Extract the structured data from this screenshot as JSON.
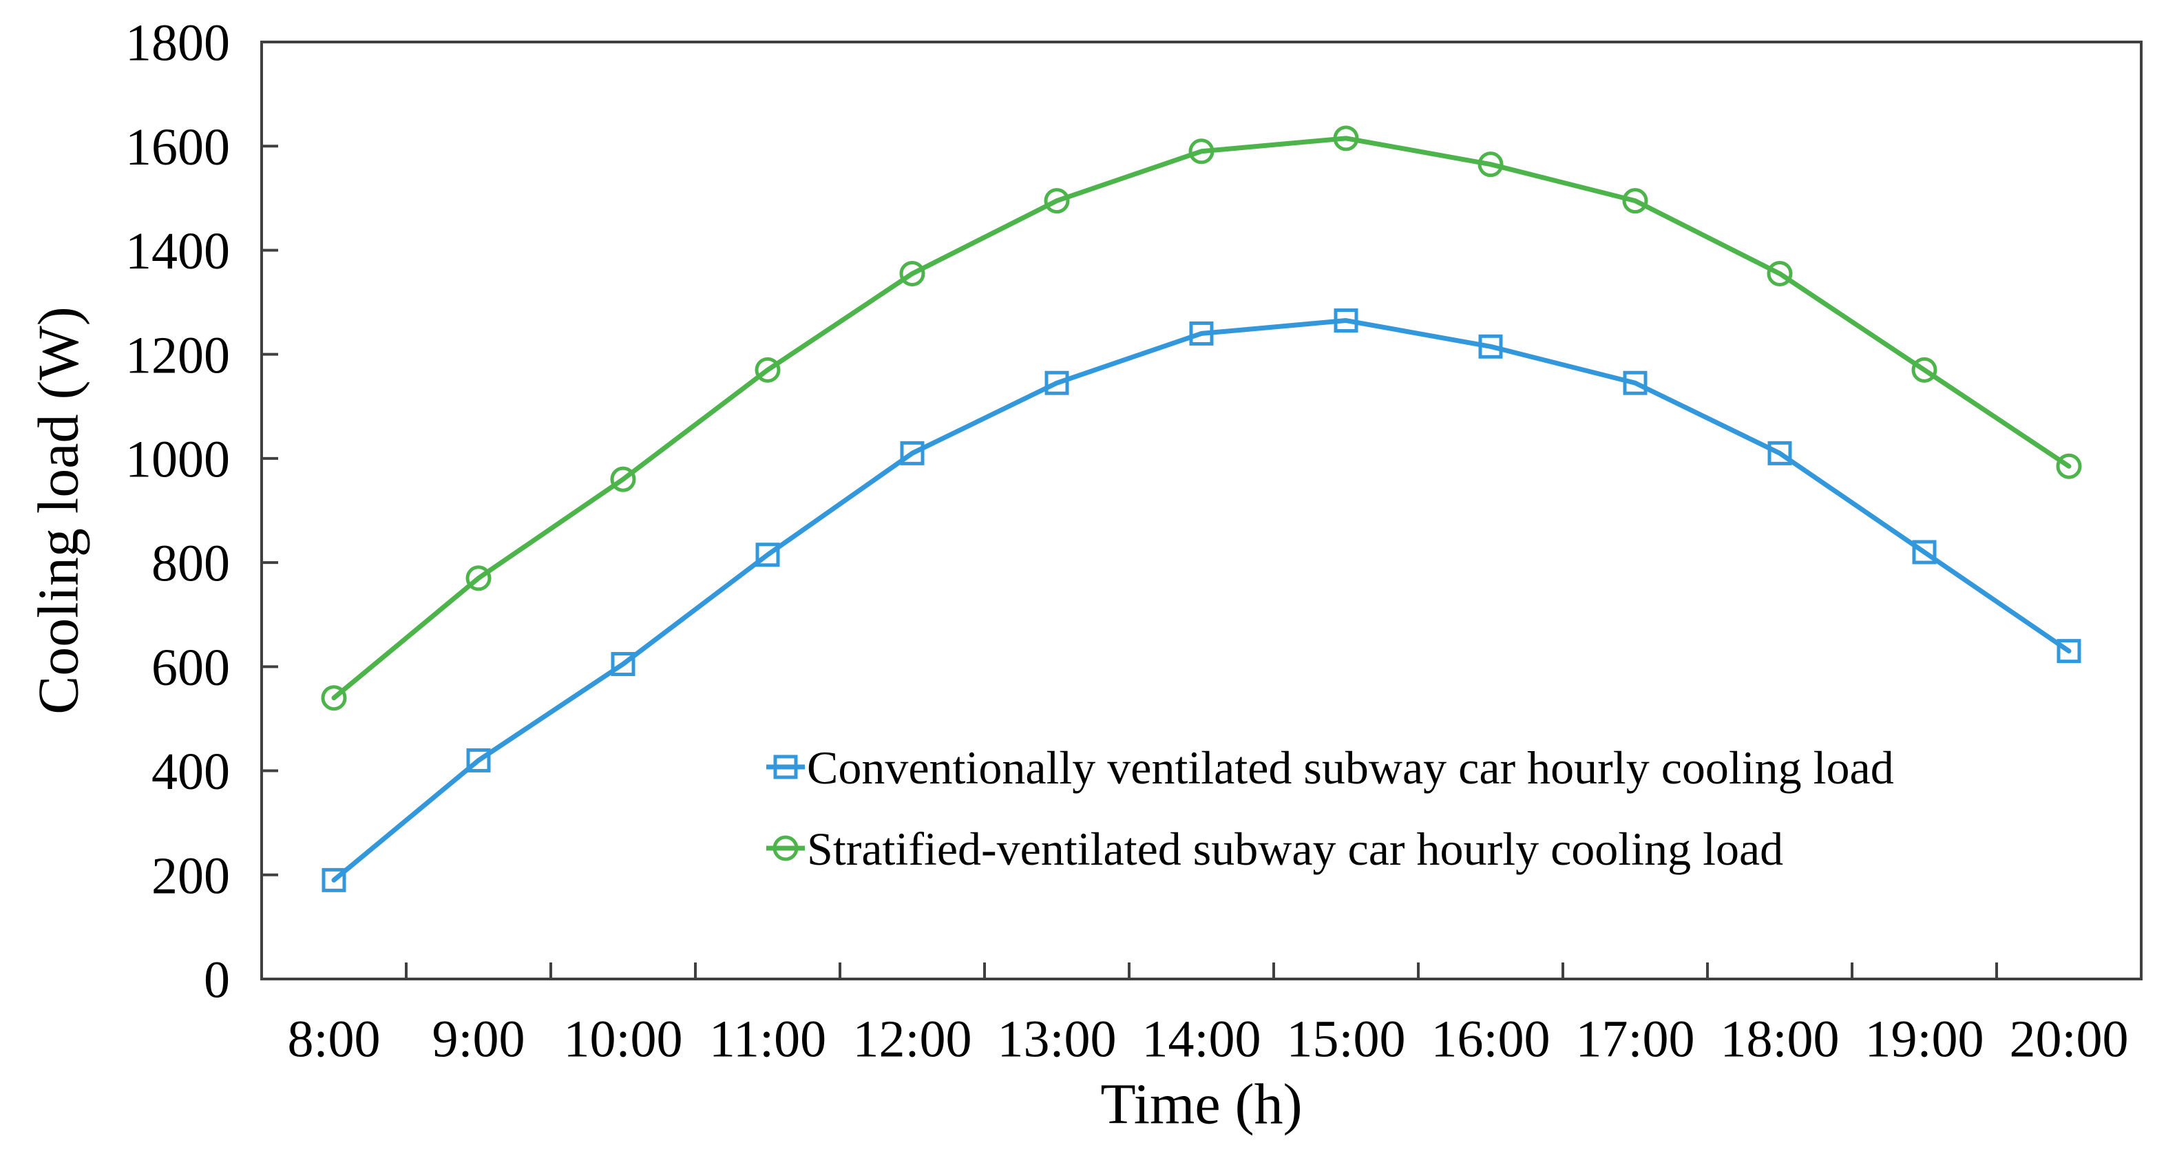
{
  "figure": {
    "background": "#ffffff",
    "axis_color": "#404040",
    "text_color": "#000000"
  },
  "chart_data": {
    "type": "line",
    "title": "",
    "xlabel": "Time (h)",
    "ylabel": "Cooling load (W)",
    "categories": [
      "8:00",
      "9:00",
      "10:00",
      "11:00",
      "12:00",
      "13:00",
      "14:00",
      "15:00",
      "16:00",
      "17:00",
      "18:00",
      "19:00",
      "20:00"
    ],
    "series": [
      {
        "name": "Conventionally ventilated subway car hourly cooling load",
        "color": "#3398DB",
        "marker": "square",
        "values": [
          190,
          420,
          605,
          815,
          1010,
          1145,
          1240,
          1265,
          1215,
          1145,
          1010,
          820,
          630
        ]
      },
      {
        "name": "Stratified-ventilated subway car hourly cooling load",
        "color": "#4DB44B",
        "marker": "circle",
        "values": [
          540,
          770,
          960,
          1170,
          1355,
          1495,
          1590,
          1615,
          1565,
          1495,
          1355,
          1170,
          985
        ]
      }
    ],
    "ylim": [
      0,
      1800
    ],
    "y_tick_step": 200,
    "y_tick_labels": [
      "0",
      "200",
      "400",
      "600",
      "800",
      "1000",
      "1200",
      "1400",
      "1600",
      "1800"
    ],
    "grid": false,
    "frame": "box",
    "ticks": "inside",
    "legend_position": "inside-lower-middle"
  }
}
